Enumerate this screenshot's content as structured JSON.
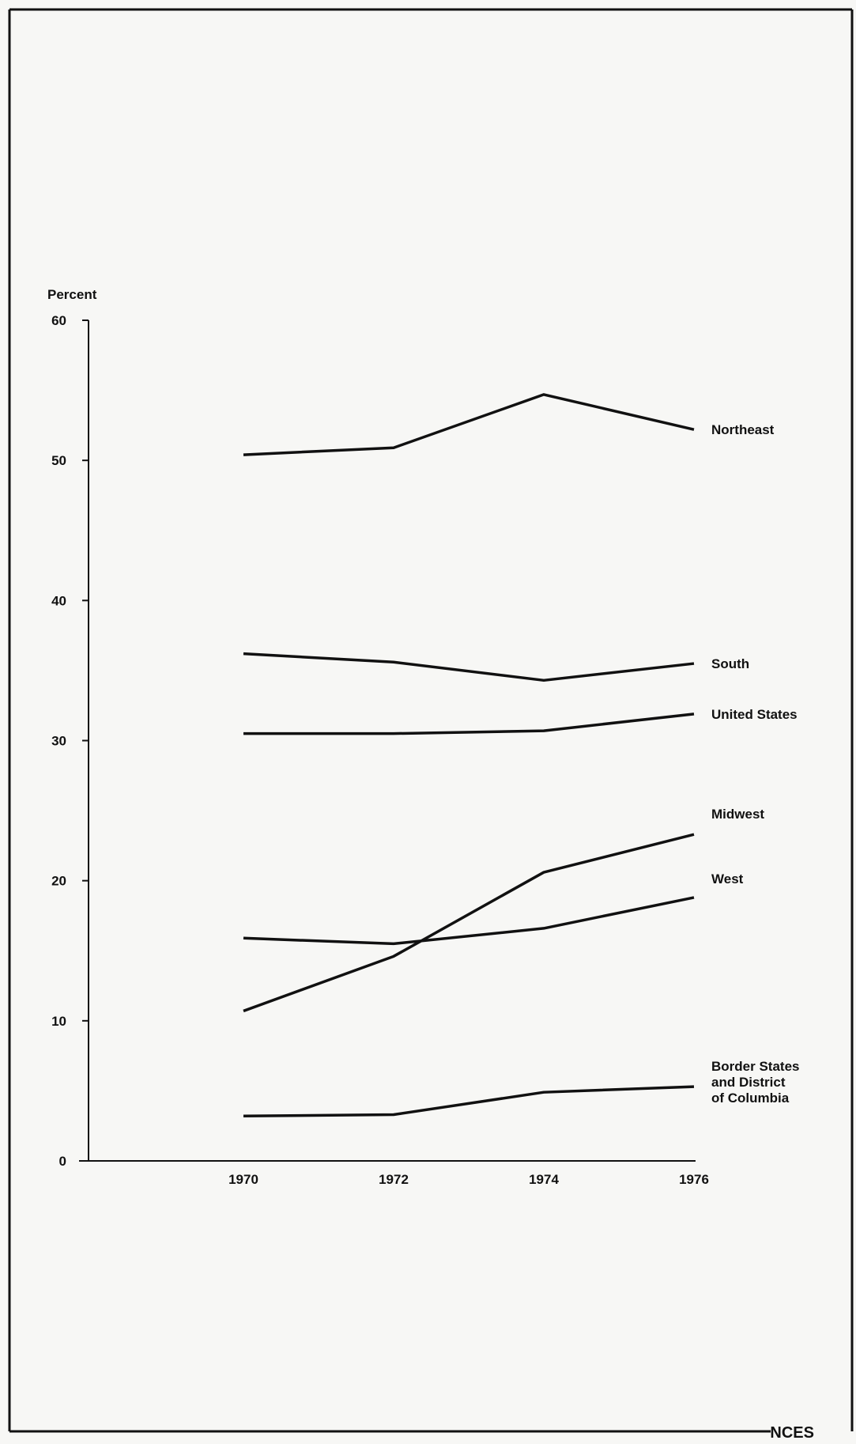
{
  "chart_data": {
    "type": "line",
    "ylabel": "Percent",
    "ylim": [
      0,
      60
    ],
    "yticks": [
      "0",
      "10",
      "20",
      "30",
      "40",
      "50",
      "60"
    ],
    "x": [
      1970,
      1972,
      1974,
      1976
    ],
    "xticks": [
      "1970",
      "1972",
      "1974",
      "1976"
    ],
    "series": [
      {
        "name": "Northeast",
        "values": [
          50.4,
          50.9,
          54.7,
          52.2
        ]
      },
      {
        "name": "South",
        "values": [
          36.2,
          35.6,
          34.3,
          35.5
        ]
      },
      {
        "name": "United States",
        "values": [
          30.5,
          30.5,
          30.7,
          31.9
        ]
      },
      {
        "name": "Midwest",
        "values": [
          10.7,
          14.6,
          20.6,
          23.3
        ]
      },
      {
        "name": "West",
        "values": [
          15.9,
          15.5,
          16.6,
          18.8
        ]
      },
      {
        "name": "Border States and District of Columbia",
        "values": [
          3.2,
          3.3,
          4.9,
          5.3
        ]
      }
    ],
    "grid": false,
    "legend": "inline-right"
  },
  "footer": {
    "label": "NCES"
  },
  "colors": {
    "ink": "#111111",
    "paper": "#f7f7f5"
  }
}
